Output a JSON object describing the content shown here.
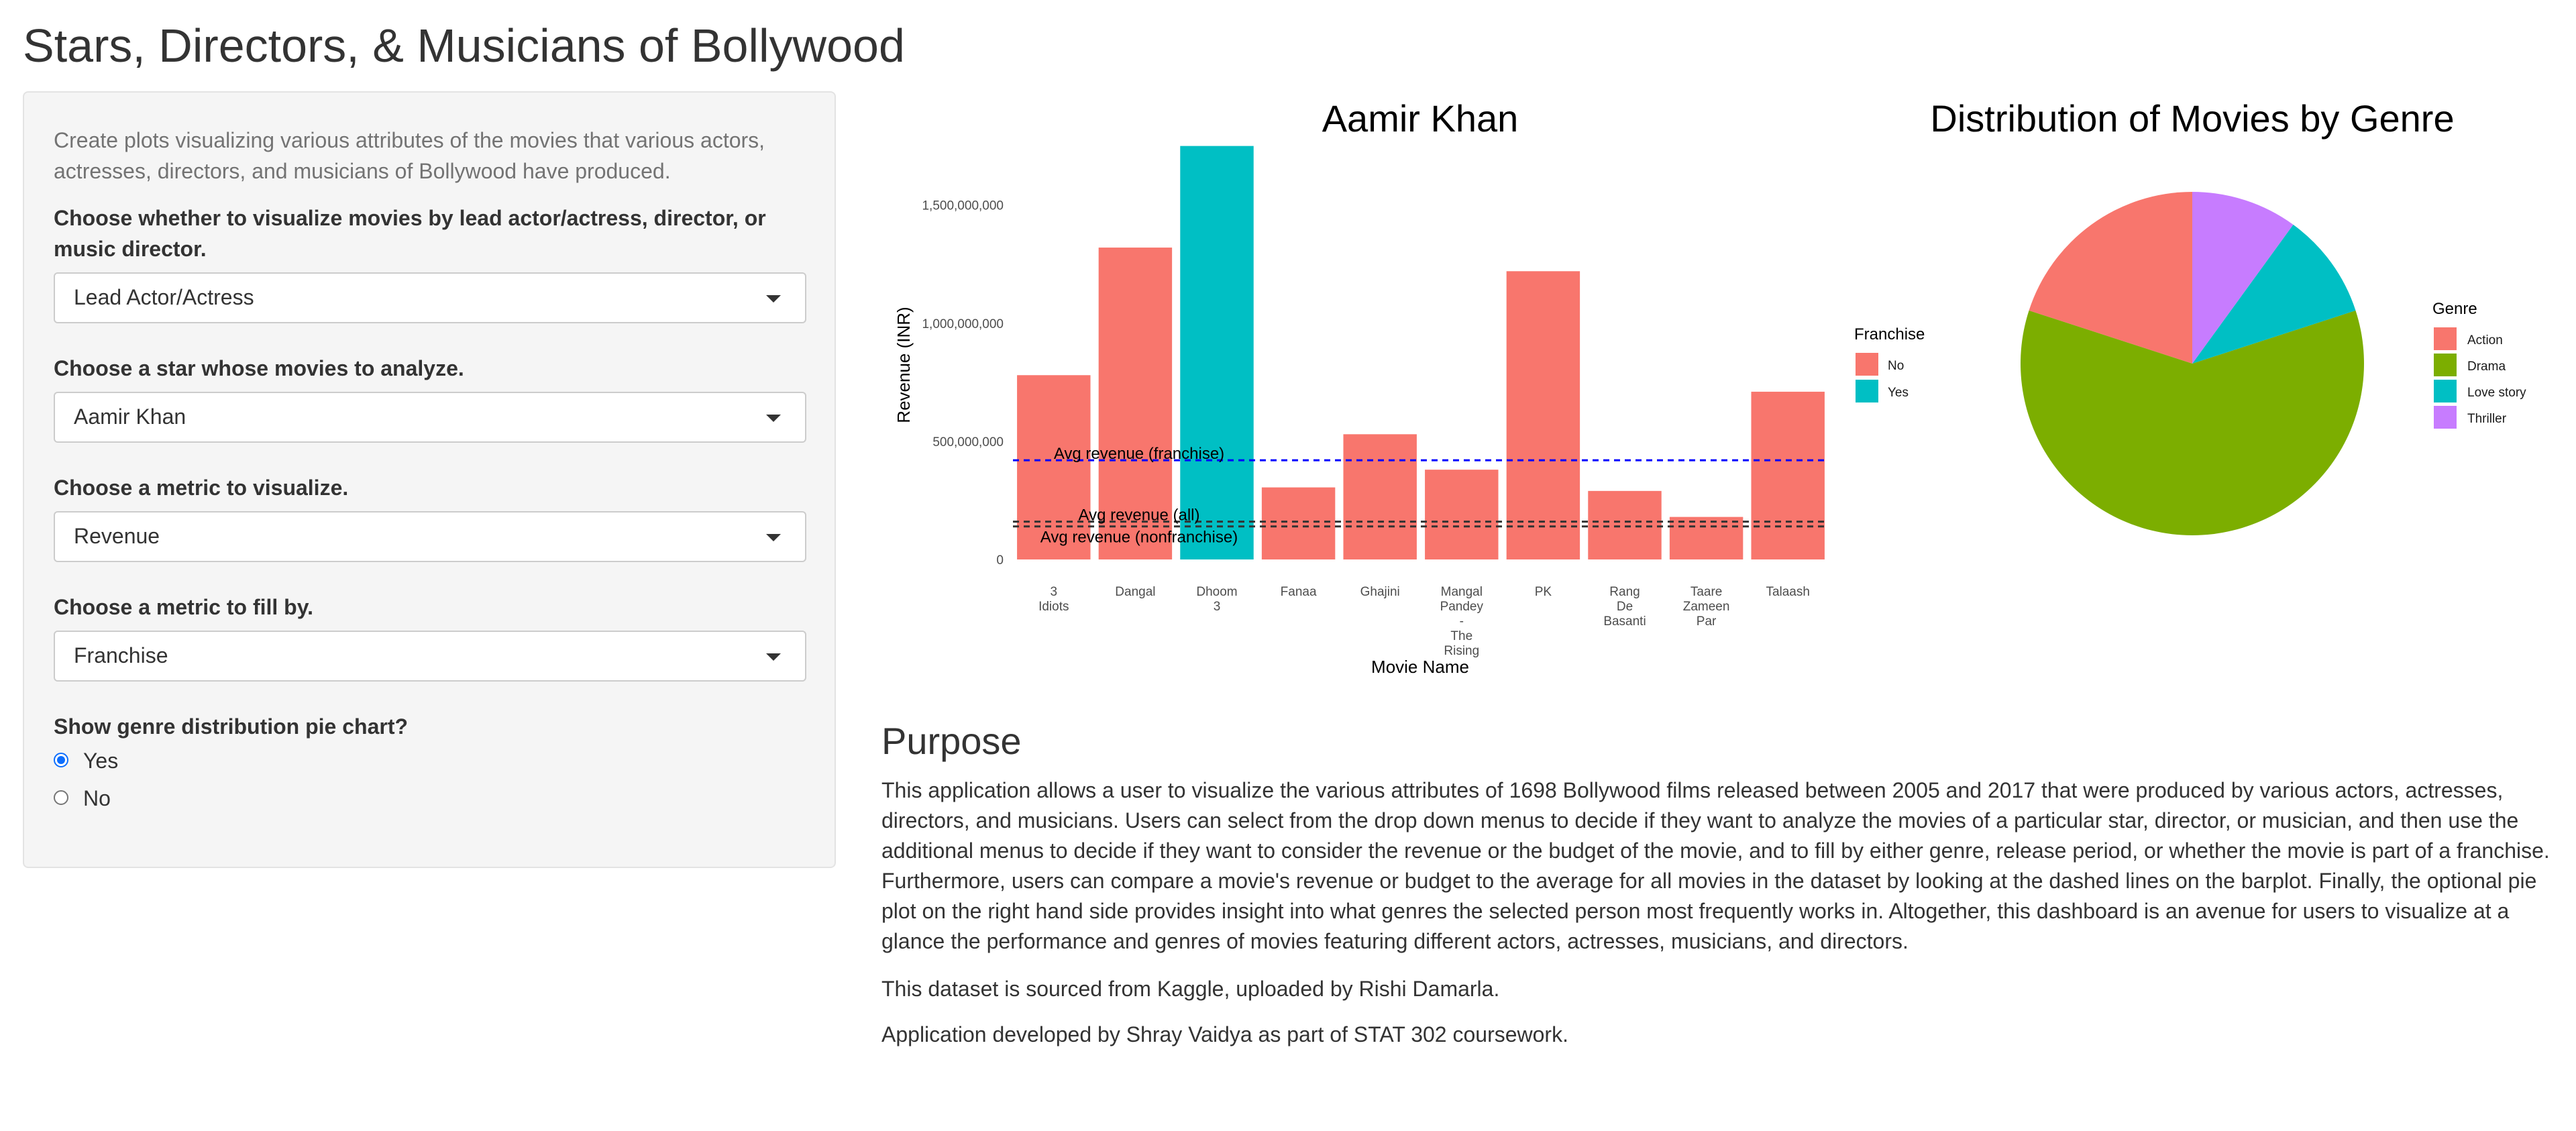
{
  "app": {
    "title": "Stars, Directors, & Musicians of Bollywood"
  },
  "sidebar": {
    "intro": "Create plots visualizing various attributes of the movies that various actors, actresses, directors, and musicians of Bollywood have produced.",
    "controls": [
      {
        "label": "Choose whether to visualize movies by lead actor/actress, director, or music director.",
        "value": "Lead Actor/Actress"
      },
      {
        "label": "Choose a star whose movies to analyze.",
        "value": "Aamir Khan"
      },
      {
        "label": "Choose a metric to visualize.",
        "value": "Revenue"
      },
      {
        "label": "Choose a metric to fill by.",
        "value": "Franchise"
      }
    ],
    "pie_toggle": {
      "label": "Show genre distribution pie chart?",
      "options": [
        {
          "label": "Yes",
          "checked": true
        },
        {
          "label": "No",
          "checked": false
        }
      ]
    }
  },
  "chart_data": [
    {
      "type": "bar",
      "title": "Aamir Khan",
      "xlabel": "Movie Name",
      "ylabel": "Revenue (INR)",
      "ylim": [
        0,
        1800000000
      ],
      "yticks": [
        "0",
        "500,000,000",
        "1,000,000,000",
        "1,500,000,000"
      ],
      "ytick_values": [
        0,
        500000000,
        1000000000,
        1500000000
      ],
      "categories": [
        "3 Idiots",
        "Dangal",
        "Dhoom 3",
        "Fanaa",
        "Ghajini",
        "Mangal Pandey - The Rising",
        "PK",
        "Rang De Basanti",
        "Taare Zameen Par",
        "Talaash"
      ],
      "category_lines": [
        [
          "3",
          "Idiots"
        ],
        [
          "Dangal"
        ],
        [
          "Dhoom",
          "3"
        ],
        [
          "Fanaa"
        ],
        [
          "Ghajini"
        ],
        [
          "Mangal",
          "Pandey",
          "-",
          "The",
          "Rising"
        ],
        [
          "PK"
        ],
        [
          "Rang",
          "De",
          "Basanti"
        ],
        [
          "Taare",
          "Zameen",
          "Par"
        ],
        [
          "Talaash"
        ]
      ],
      "values": [
        780000000,
        1320000000,
        1750000000,
        305000000,
        530000000,
        380000000,
        1220000000,
        290000000,
        180000000,
        710000000
      ],
      "fill": [
        "No",
        "No",
        "Yes",
        "No",
        "No",
        "No",
        "No",
        "No",
        "No",
        "No"
      ],
      "legend": {
        "title": "Franchise",
        "entries": [
          {
            "name": "No",
            "color": "#F8766D"
          },
          {
            "name": "Yes",
            "color": "#00BFC4"
          }
        ]
      },
      "reference_lines": [
        {
          "label": "Avg revenue (franchise)",
          "value": 420000000,
          "color": "#0000ff"
        },
        {
          "label": "Avg revenue (all)",
          "value": 160000000,
          "color": "#333333"
        },
        {
          "label": "Avg revenue (nonfranchise)",
          "value": 140000000,
          "color": "#333333"
        }
      ]
    },
    {
      "type": "pie",
      "title": "Distribution of Movies by Genre",
      "categories": [
        "Action",
        "Drama",
        "Love story",
        "Thriller"
      ],
      "values": [
        2,
        6,
        1,
        1
      ],
      "colors": [
        "#F8766D",
        "#7CAE00",
        "#00BFC4",
        "#C77CFF"
      ],
      "legend": {
        "title": "Genre"
      }
    }
  ],
  "purpose": {
    "heading": "Purpose",
    "paragraphs": [
      "This application allows a user to visualize the various attributes of 1698 Bollywood films released between 2005 and 2017 that were produced by various actors, actresses, directors, and musicians. Users can select from the drop down menus to decide if they want to analyze the movies of a particular star, director, or musician, and then use the additional menus to decide if they want to consider the revenue or the budget of the movie, and to fill by either genre, release period, or whether the movie is part of a franchise. Furthermore, users can compare a movie's revenue or budget to the average for all movies in the dataset by looking at the dashed lines on the barplot. Finally, the optional pie plot on the right hand side provides insight into what genres the selected person most frequently works in. Altogether, this dashboard is an avenue for users to visualize at a glance the performance and genres of movies featuring different actors, actresses, musicians, and directors.",
      "This dataset is sourced from Kaggle, uploaded by Rishi Damarla.",
      "Application developed by Shray Vaidya as part of STAT 302 coursework."
    ]
  }
}
